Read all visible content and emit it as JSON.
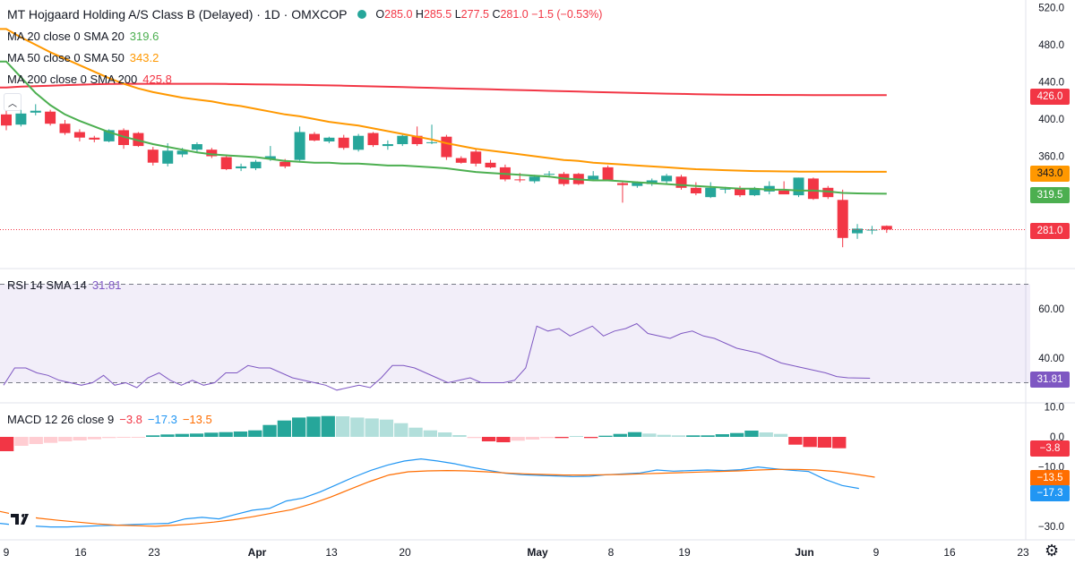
{
  "header": {
    "title": "MT Hojgaard Holding A/S Class B (Delayed) · 1D · OMXCOP",
    "o_label": "O",
    "o": "285.0",
    "h_label": "H",
    "h": "285.5",
    "l_label": "L",
    "l": "277.5",
    "c_label": "C",
    "c": "281.0",
    "change": "−1.5 (−0.53%)"
  },
  "legends": {
    "ma20": {
      "label": "MA 20 close 0 SMA 20",
      "value": "319.6",
      "color": "#4caf50"
    },
    "ma50": {
      "label": "MA 50 close 0 SMA 50",
      "value": "343.2",
      "color": "#ff9800"
    },
    "ma200": {
      "label": "MA 200 close 0 SMA 200",
      "value": "425.8",
      "color": "#f23645"
    },
    "rsi": {
      "label": "RSI 14 SMA 14",
      "value": "31.81",
      "color": "#7e57c2"
    },
    "macd": {
      "label": "MACD 12 26 close 9",
      "v1": "−3.8",
      "v2": "−17.3",
      "v3": "−13.5",
      "c1": "#f23645",
      "c2": "#2196f3",
      "c3": "#ff6d00"
    }
  },
  "badges": {
    "ma200": "426.0",
    "ma50": "343.0",
    "ma20": "319.5",
    "price": "281.0",
    "rsi": "31.81",
    "macd_hist": "−3.8",
    "macd_signal": "−13.5",
    "macd_line": "−17.3"
  },
  "chart_data": {
    "type": "candlestick",
    "price_axis": {
      "ticks": [
        "520.0",
        "480.0",
        "440.0",
        "400.0",
        "360.0",
        "320.0"
      ],
      "range": [
        255,
        525
      ]
    },
    "rsi_axis": {
      "ticks": [
        "60.00",
        "40.00"
      ],
      "range": [
        27,
        70
      ],
      "bands": [
        30,
        70
      ]
    },
    "macd_axis": {
      "ticks": [
        "10.0",
        "0.0",
        "−10.0",
        "−20.0",
        "−30.0"
      ],
      "range": [
        -31,
        11
      ]
    },
    "x_axis": {
      "labels": [
        "9",
        "16",
        "23",
        "Apr",
        "13",
        "20",
        "May",
        "8",
        "19",
        "Jun",
        "9",
        "16",
        "23"
      ],
      "label_slots": [
        0,
        5,
        10,
        17,
        22,
        27,
        35,
        40,
        45,
        53,
        58,
        63,
        68
      ]
    },
    "candles": [
      {
        "o": 405,
        "h": 412,
        "l": 388,
        "c": 393
      },
      {
        "o": 394,
        "h": 410,
        "l": 392,
        "c": 406
      },
      {
        "o": 407,
        "h": 416,
        "l": 404,
        "c": 409
      },
      {
        "o": 408,
        "h": 410,
        "l": 393,
        "c": 395
      },
      {
        "o": 395,
        "h": 399,
        "l": 383,
        "c": 385
      },
      {
        "o": 386,
        "h": 389,
        "l": 376,
        "c": 380
      },
      {
        "o": 380,
        "h": 382,
        "l": 375,
        "c": 378
      },
      {
        "o": 376,
        "h": 389,
        "l": 375,
        "c": 388
      },
      {
        "o": 388,
        "h": 390,
        "l": 368,
        "c": 372
      },
      {
        "o": 385,
        "h": 386,
        "l": 370,
        "c": 371
      },
      {
        "o": 367,
        "h": 370,
        "l": 350,
        "c": 353
      },
      {
        "o": 352,
        "h": 374,
        "l": 349,
        "c": 366
      },
      {
        "o": 362,
        "h": 369,
        "l": 359,
        "c": 366
      },
      {
        "o": 367,
        "h": 375,
        "l": 364,
        "c": 373
      },
      {
        "o": 367,
        "h": 369,
        "l": 358,
        "c": 360
      },
      {
        "o": 359,
        "h": 360,
        "l": 345,
        "c": 346
      },
      {
        "o": 347,
        "h": 352,
        "l": 344,
        "c": 349
      },
      {
        "o": 347,
        "h": 356,
        "l": 345,
        "c": 354
      },
      {
        "o": 357,
        "h": 371,
        "l": 355,
        "c": 360
      },
      {
        "o": 354,
        "h": 357,
        "l": 347,
        "c": 349
      },
      {
        "o": 356,
        "h": 392,
        "l": 355,
        "c": 386
      },
      {
        "o": 384,
        "h": 386,
        "l": 376,
        "c": 377
      },
      {
        "o": 376,
        "h": 381,
        "l": 374,
        "c": 380
      },
      {
        "o": 380,
        "h": 383,
        "l": 367,
        "c": 369
      },
      {
        "o": 367,
        "h": 384,
        "l": 365,
        "c": 382
      },
      {
        "o": 385,
        "h": 386,
        "l": 370,
        "c": 372
      },
      {
        "o": 371,
        "h": 377,
        "l": 367,
        "c": 373
      },
      {
        "o": 373,
        "h": 383,
        "l": 371,
        "c": 382
      },
      {
        "o": 382,
        "h": 392,
        "l": 371,
        "c": 373
      },
      {
        "o": 374,
        "h": 394,
        "l": 373,
        "c": 375
      },
      {
        "o": 381,
        "h": 383,
        "l": 356,
        "c": 359
      },
      {
        "o": 358,
        "h": 360,
        "l": 352,
        "c": 353
      },
      {
        "o": 365,
        "h": 368,
        "l": 349,
        "c": 352
      },
      {
        "o": 353,
        "h": 356,
        "l": 347,
        "c": 348
      },
      {
        "o": 348,
        "h": 351,
        "l": 333,
        "c": 335
      },
      {
        "o": 335,
        "h": 342,
        "l": 332,
        "c": 334
      },
      {
        "o": 333,
        "h": 340,
        "l": 331,
        "c": 338
      },
      {
        "o": 340,
        "h": 344,
        "l": 337,
        "c": 341
      },
      {
        "o": 341,
        "h": 343,
        "l": 328,
        "c": 330
      },
      {
        "o": 341,
        "h": 342,
        "l": 329,
        "c": 330
      },
      {
        "o": 335,
        "h": 344,
        "l": 333,
        "c": 339
      },
      {
        "o": 348,
        "h": 350,
        "l": 333,
        "c": 334
      },
      {
        "o": 331,
        "h": 332,
        "l": 310,
        "c": 329
      },
      {
        "o": 328,
        "h": 333,
        "l": 326,
        "c": 332
      },
      {
        "o": 330,
        "h": 336,
        "l": 328,
        "c": 334
      },
      {
        "o": 333,
        "h": 341,
        "l": 330,
        "c": 339
      },
      {
        "o": 338,
        "h": 340,
        "l": 324,
        "c": 326
      },
      {
        "o": 326,
        "h": 332,
        "l": 318,
        "c": 320
      },
      {
        "o": 316,
        "h": 332,
        "l": 315,
        "c": 326
      },
      {
        "o": 324,
        "h": 327,
        "l": 320,
        "c": 325
      },
      {
        "o": 325,
        "h": 328,
        "l": 316,
        "c": 318
      },
      {
        "o": 318,
        "h": 327,
        "l": 317,
        "c": 325
      },
      {
        "o": 322,
        "h": 333,
        "l": 319,
        "c": 328
      },
      {
        "o": 323,
        "h": 333,
        "l": 319,
        "c": 319
      },
      {
        "o": 318,
        "h": 337,
        "l": 316,
        "c": 337
      },
      {
        "o": 336,
        "h": 337,
        "l": 313,
        "c": 314
      },
      {
        "o": 326,
        "h": 328,
        "l": 314,
        "c": 316
      },
      {
        "o": 313,
        "h": 324,
        "l": 262,
        "c": 272
      },
      {
        "o": 277,
        "h": 287,
        "l": 271,
        "c": 282
      },
      {
        "o": 280,
        "h": 285,
        "l": 276,
        "c": 281
      },
      {
        "o": 285,
        "h": 285.5,
        "l": 277.5,
        "c": 281
      }
    ],
    "ma20": [
      462,
      445,
      428,
      415,
      405,
      398,
      392,
      386,
      381,
      377,
      373,
      370,
      367,
      364,
      362,
      361,
      360,
      359,
      357,
      355,
      354,
      353,
      353,
      352,
      352,
      351,
      350,
      350,
      349,
      348,
      347,
      345,
      343,
      342,
      341,
      340,
      339,
      338,
      336,
      335,
      334,
      334,
      333,
      332,
      331,
      330,
      329,
      328,
      327,
      326,
      325,
      325,
      324,
      324,
      323,
      323,
      322,
      320.5,
      320,
      319.8,
      319.6
    ],
    "ma50": [
      497,
      488,
      480,
      472,
      465,
      458,
      451,
      444,
      438,
      433,
      429,
      426,
      423,
      421,
      419,
      416,
      414,
      411,
      408,
      405,
      403,
      400,
      397,
      395,
      393,
      390,
      387,
      384,
      381,
      378,
      374,
      371,
      368,
      366,
      364,
      362,
      360,
      358,
      356,
      355,
      353,
      352,
      351,
      350,
      349,
      348,
      347,
      346,
      345.5,
      345,
      344.5,
      344,
      343.8,
      343.6,
      343.4,
      343.3,
      343.3,
      343.3,
      343.2,
      343.2,
      343.2
    ],
    "ma200": [
      434,
      435,
      435.5,
      436,
      436.5,
      437,
      437.5,
      437.8,
      438,
      438,
      438,
      438,
      438,
      438,
      438,
      437.8,
      437.6,
      437.4,
      437.2,
      437,
      436.8,
      436.5,
      436.2,
      436,
      435.6,
      435.2,
      434.8,
      434.4,
      434,
      433.6,
      433.2,
      432.8,
      432.4,
      432,
      431.6,
      431.2,
      430.8,
      430.4,
      430,
      429.6,
      429.2,
      428.8,
      428.4,
      428,
      427.7,
      427.4,
      427.1,
      426.8,
      426.5,
      426.3,
      426.1,
      426,
      426,
      425.9,
      425.9,
      425.8,
      425.8,
      425.8,
      425.8,
      425.8,
      425.8
    ],
    "rsi": [
      29,
      36,
      36,
      34,
      33,
      31,
      30,
      29,
      30,
      33,
      29,
      30,
      28,
      32,
      34,
      31,
      29,
      31,
      29,
      30,
      34,
      34,
      37,
      36,
      36,
      34,
      32,
      31,
      30,
      29,
      27,
      28,
      29,
      28,
      32,
      37,
      37,
      36,
      34,
      32,
      30,
      31,
      32,
      30,
      30,
      30,
      31,
      36,
      53,
      51,
      52,
      49,
      51,
      53,
      49,
      51,
      52,
      54,
      50,
      49,
      48,
      50,
      51,
      49,
      48,
      46,
      44,
      43,
      42,
      40,
      38,
      37,
      36,
      35,
      34,
      32.5,
      32,
      31.9,
      31.81
    ],
    "macd_hist": [
      -4.8,
      -3,
      -2.4,
      -2,
      -1.5,
      -1.2,
      -0.8,
      -0.4,
      -0.2,
      -0.1,
      0.5,
      0.8,
      1,
      1.1,
      1.4,
      1.6,
      1.8,
      2.2,
      4,
      5.5,
      6.5,
      6.8,
      7,
      6.9,
      6.5,
      6.2,
      5.8,
      4.6,
      3.1,
      2.2,
      1.5,
      0.6,
      -0.4,
      -1.5,
      -1.8,
      -1.3,
      -0.9,
      -0.4,
      -0.4,
      0.3,
      -0.4,
      0.4,
      1,
      1.6,
      1.1,
      0.7,
      0.5,
      0.5,
      0.5,
      0.9,
      1.3,
      2.1,
      1.5,
      1,
      -2.6,
      -3.4,
      -3.6,
      -3.8
    ],
    "macd_line": [
      -29,
      -29.6,
      -29.9,
      -30.2,
      -30.2,
      -30,
      -29.8,
      -29.6,
      -29.4,
      -29.2,
      -29,
      -27.5,
      -27,
      -27.5,
      -26,
      -24.6,
      -24,
      -21.5,
      -20.5,
      -18.5,
      -16,
      -13.5,
      -11.3,
      -9.5,
      -8.1,
      -7.4,
      -8.1,
      -9,
      -10.2,
      -11.2,
      -12.2,
      -12.7,
      -12.9,
      -13.1,
      -13.3,
      -13.2,
      -12.7,
      -12.4,
      -12.1,
      -11.1,
      -11.5,
      -11.3,
      -11.1,
      -11.3,
      -11,
      -10.1,
      -10.7,
      -11.2,
      -11.6,
      -14.3,
      -16.3,
      -17.3
    ],
    "macd_signal": [
      -25,
      -26.4,
      -27.3,
      -28,
      -28.6,
      -29.2,
      -29.6,
      -29.8,
      -30,
      -29.6,
      -29.2,
      -28.6,
      -27.8,
      -26.8,
      -25.6,
      -24.4,
      -22.5,
      -20.2,
      -17.6,
      -15,
      -12.8,
      -11.7,
      -11.4,
      -11.3,
      -11.4,
      -11.7,
      -12.1,
      -12.4,
      -12.6,
      -12.8,
      -12.8,
      -12.7,
      -12.6,
      -12.4,
      -12.2,
      -12,
      -11.8,
      -11.6,
      -11.4,
      -11.1,
      -10.9,
      -10.9,
      -11.1,
      -11.6,
      -12.5,
      -13.5
    ]
  }
}
